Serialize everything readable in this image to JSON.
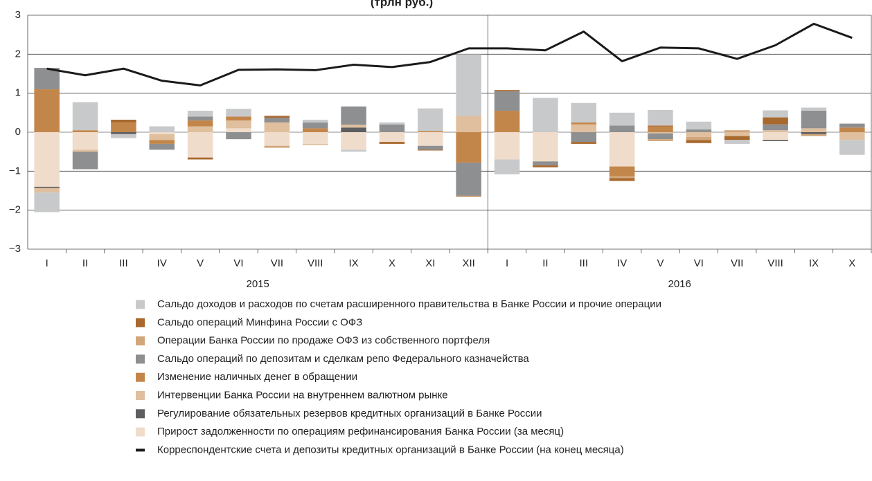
{
  "chart_data": {
    "type": "bar",
    "title": "(трлн руб.)",
    "categories": [
      "I",
      "II",
      "III",
      "IV",
      "V",
      "VI",
      "VII",
      "VIII",
      "IX",
      "X",
      "XI",
      "XII",
      "I",
      "II",
      "III",
      "IV",
      "V",
      "VI",
      "VII",
      "VIII",
      "IX",
      "X"
    ],
    "years": [
      "2015",
      "2016"
    ],
    "ylim": [
      -3,
      3
    ],
    "yticks": [
      {
        "value": -3,
        "label": "−3"
      },
      {
        "value": -2,
        "label": "−2"
      },
      {
        "value": -1,
        "label": "−1"
      },
      0,
      1,
      2,
      3
    ],
    "grid": true,
    "series": [
      {
        "name": "Сальдо доходов и расходов по счетам расширенного правительства в Банке России и прочие операции",
        "color": "#c8c9cb",
        "values": [
          -0.5,
          0.72,
          -0.1,
          0.15,
          0.15,
          0.2,
          0,
          0.07,
          -0.05,
          0.05,
          0.58,
          1.58,
          -0.38,
          0.88,
          0.5,
          0.33,
          0.4,
          0.2,
          -0.1,
          0.18,
          0.08,
          -0.38
        ]
      },
      {
        "name": "Сальдо операций Минфина России с ОФЗ",
        "color": "#a8692e",
        "values": [
          0,
          0,
          0.07,
          0,
          -0.05,
          0,
          0.05,
          0,
          0,
          -0.05,
          -0.02,
          -0.02,
          0.03,
          -0.05,
          -0.05,
          -0.07,
          0.02,
          -0.08,
          -0.1,
          0.18,
          0,
          0
        ]
      },
      {
        "name": "Операции Банка России по продаже ОФЗ из собственного портфеля",
        "color": "#d1a67a",
        "values": [
          0,
          0,
          0,
          0,
          0,
          0,
          -0.05,
          0,
          0,
          0,
          0,
          0,
          0,
          0,
          0,
          -0.05,
          -0.05,
          -0.08,
          0.05,
          0,
          -0.05,
          0
        ]
      },
      {
        "name": "Сальдо операций по депозитам и сделкам репо Федерального казначейства",
        "color": "#8e8f91",
        "values": [
          0.55,
          -0.45,
          0,
          -0.15,
          0.1,
          -0.18,
          0.12,
          0.15,
          0.47,
          0.2,
          -0.1,
          -0.85,
          0.5,
          -0.1,
          -0.25,
          0.17,
          -0.15,
          0.07,
          0,
          0.15,
          0.45,
          0.1
        ]
      },
      {
        "name": "Изменение наличных денег в обращении",
        "color": "#c3864a",
        "values": [
          1.1,
          0.05,
          0.25,
          -0.1,
          0.15,
          0.1,
          0,
          0.1,
          0,
          0,
          0.03,
          -0.78,
          0.55,
          0,
          0.05,
          -0.25,
          0.15,
          0,
          0,
          0,
          0,
          0.12
        ]
      },
      {
        "name": "Интервенции Банка России на внутреннем валютном рынке",
        "color": "#dfbf9e",
        "values": [
          -0.12,
          -0.05,
          0,
          -0.15,
          0.15,
          0.2,
          0.25,
          -0.03,
          0.07,
          0,
          0,
          0.42,
          0,
          0,
          0.2,
          0,
          -0.03,
          -0.12,
          -0.1,
          0.05,
          0.1,
          -0.2
        ]
      },
      {
        "name": "Регулирование обязательных резервов кредитных организаций в Банке России",
        "color": "#5d5e60",
        "values": [
          -0.03,
          0,
          -0.05,
          0,
          0,
          0,
          0,
          0,
          0.12,
          0,
          0,
          0,
          0,
          0,
          0,
          0,
          0,
          0,
          0,
          -0.03,
          -0.05,
          0
        ]
      },
      {
        "name": "Прирост задолженности по операциям рефинансирования Банка России (за месяц)",
        "color": "#f0dccb",
        "values": [
          -1.4,
          -0.45,
          0,
          -0.05,
          -0.65,
          0.1,
          -0.35,
          -0.3,
          -0.45,
          -0.25,
          -0.35,
          0,
          -0.7,
          -0.75,
          0,
          -0.88,
          0,
          0,
          0,
          -0.2,
          0,
          0
        ]
      },
      {
        "name": "Корреспондентские счета и депозиты кредитных организаций в Банке России (на конец месяца)",
        "color": "#1a1a1a",
        "type": "line",
        "values": [
          1.63,
          1.46,
          1.63,
          1.32,
          1.2,
          1.6,
          1.61,
          1.59,
          1.73,
          1.67,
          1.8,
          2.15,
          2.15,
          2.1,
          2.58,
          1.82,
          2.17,
          2.15,
          1.88,
          2.23,
          2.78,
          2.42
        ]
      }
    ]
  }
}
